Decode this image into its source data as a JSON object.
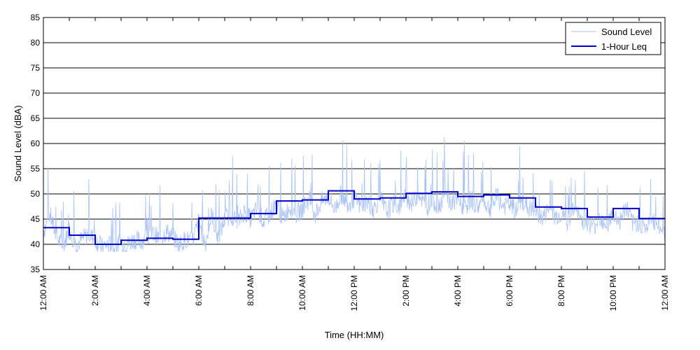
{
  "chart_data": {
    "type": "line",
    "title": "",
    "xlabel": "Time (HH:MM)",
    "ylabel": "Sound Level (dBA)",
    "xlim": [
      0,
      24
    ],
    "ylim": [
      35,
      85
    ],
    "yticks": [
      35,
      40,
      45,
      50,
      55,
      60,
      65,
      70,
      75,
      80,
      85
    ],
    "xticks": [
      {
        "hour": 0,
        "label": "12:00 AM"
      },
      {
        "hour": 2,
        "label": "2:00 AM"
      },
      {
        "hour": 4,
        "label": "4:00 AM"
      },
      {
        "hour": 6,
        "label": "6:00 AM"
      },
      {
        "hour": 8,
        "label": "8:00 AM"
      },
      {
        "hour": 10,
        "label": "10:00 AM"
      },
      {
        "hour": 12,
        "label": "12:00 PM"
      },
      {
        "hour": 14,
        "label": "2:00 PM"
      },
      {
        "hour": 16,
        "label": "4:00 PM"
      },
      {
        "hour": 18,
        "label": "6:00 PM"
      },
      {
        "hour": 20,
        "label": "8:00 PM"
      },
      {
        "hour": 22,
        "label": "10:00 PM"
      },
      {
        "hour": 24,
        "label": "12:00 AM"
      }
    ],
    "grid": "horizontal",
    "legend_position": "top-right",
    "colors": {
      "sound_level": "#a9c2f5",
      "leq": "#0000cc"
    },
    "series": [
      {
        "name": "Sound Level",
        "style": "thin-light-blue",
        "points": [
          [
            0.0,
            42.5
          ],
          [
            0.25,
            46.0
          ],
          [
            0.5,
            41.5
          ],
          [
            0.75,
            39.5
          ],
          [
            1.0,
            43.0
          ],
          [
            1.25,
            40.0
          ],
          [
            1.5,
            41.0
          ],
          [
            1.75,
            42.0
          ],
          [
            2.0,
            41.0
          ],
          [
            2.25,
            39.5
          ],
          [
            2.5,
            40.0
          ],
          [
            2.75,
            39.0
          ],
          [
            3.0,
            40.5
          ],
          [
            3.25,
            40.0
          ],
          [
            3.5,
            41.0
          ],
          [
            3.75,
            40.5
          ],
          [
            4.0,
            41.5
          ],
          [
            4.25,
            42.0
          ],
          [
            4.5,
            41.0
          ],
          [
            4.75,
            42.5
          ],
          [
            5.0,
            41.5
          ],
          [
            5.25,
            40.0
          ],
          [
            5.5,
            41.0
          ],
          [
            5.75,
            40.5
          ],
          [
            6.0,
            44.5
          ],
          [
            6.25,
            40.0
          ],
          [
            6.5,
            46.0
          ],
          [
            6.75,
            41.0
          ],
          [
            7.0,
            45.0
          ],
          [
            7.25,
            46.0
          ],
          [
            7.5,
            44.0
          ],
          [
            7.75,
            46.5
          ],
          [
            8.0,
            45.0
          ],
          [
            8.25,
            47.0
          ],
          [
            8.5,
            44.5
          ],
          [
            8.75,
            46.0
          ],
          [
            9.0,
            48.0
          ],
          [
            9.25,
            45.0
          ],
          [
            9.5,
            47.5
          ],
          [
            9.75,
            46.0
          ],
          [
            10.0,
            47.0
          ],
          [
            10.25,
            49.0
          ],
          [
            10.5,
            46.0
          ],
          [
            10.75,
            48.5
          ],
          [
            11.0,
            49.5
          ],
          [
            11.25,
            47.0
          ],
          [
            11.5,
            50.0
          ],
          [
            11.75,
            48.0
          ],
          [
            12.0,
            49.0
          ],
          [
            12.25,
            47.5
          ],
          [
            12.5,
            48.5
          ],
          [
            12.75,
            47.0
          ],
          [
            13.0,
            49.0
          ],
          [
            13.25,
            46.5
          ],
          [
            13.5,
            48.0
          ],
          [
            13.75,
            47.5
          ],
          [
            14.0,
            49.5
          ],
          [
            14.25,
            48.0
          ],
          [
            14.5,
            50.5
          ],
          [
            14.75,
            47.0
          ],
          [
            15.0,
            49.0
          ],
          [
            15.25,
            47.5
          ],
          [
            15.5,
            50.0
          ],
          [
            15.75,
            48.0
          ],
          [
            16.0,
            48.5
          ],
          [
            16.25,
            47.0
          ],
          [
            16.5,
            49.0
          ],
          [
            16.75,
            47.5
          ],
          [
            17.0,
            48.5
          ],
          [
            17.25,
            47.0
          ],
          [
            17.5,
            49.5
          ],
          [
            17.75,
            47.5
          ],
          [
            18.0,
            48.0
          ],
          [
            18.25,
            46.5
          ],
          [
            18.5,
            48.5
          ],
          [
            18.75,
            47.0
          ],
          [
            19.0,
            46.5
          ],
          [
            19.25,
            45.0
          ],
          [
            19.5,
            47.0
          ],
          [
            19.75,
            45.5
          ],
          [
            20.0,
            46.0
          ],
          [
            20.25,
            44.5
          ],
          [
            20.5,
            47.0
          ],
          [
            20.75,
            45.0
          ],
          [
            21.0,
            44.5
          ],
          [
            21.25,
            43.5
          ],
          [
            21.5,
            45.5
          ],
          [
            21.75,
            44.0
          ],
          [
            22.0,
            46.0
          ],
          [
            22.25,
            44.5
          ],
          [
            22.5,
            47.5
          ],
          [
            22.75,
            44.0
          ],
          [
            23.0,
            44.5
          ],
          [
            23.25,
            43.0
          ],
          [
            23.5,
            45.0
          ],
          [
            23.75,
            43.5
          ],
          [
            24.0,
            42.5
          ]
        ]
      },
      {
        "name": "1-Hour Leq",
        "style": "step-dark-blue",
        "hourly_values": [
          43.3,
          41.8,
          40.0,
          40.8,
          41.2,
          41.0,
          45.2,
          45.2,
          46.1,
          48.6,
          48.8,
          50.6,
          49.0,
          49.2,
          50.1,
          50.4,
          49.5,
          49.8,
          49.2,
          47.4,
          47.1,
          45.4,
          47.1,
          45.1
        ]
      }
    ]
  }
}
